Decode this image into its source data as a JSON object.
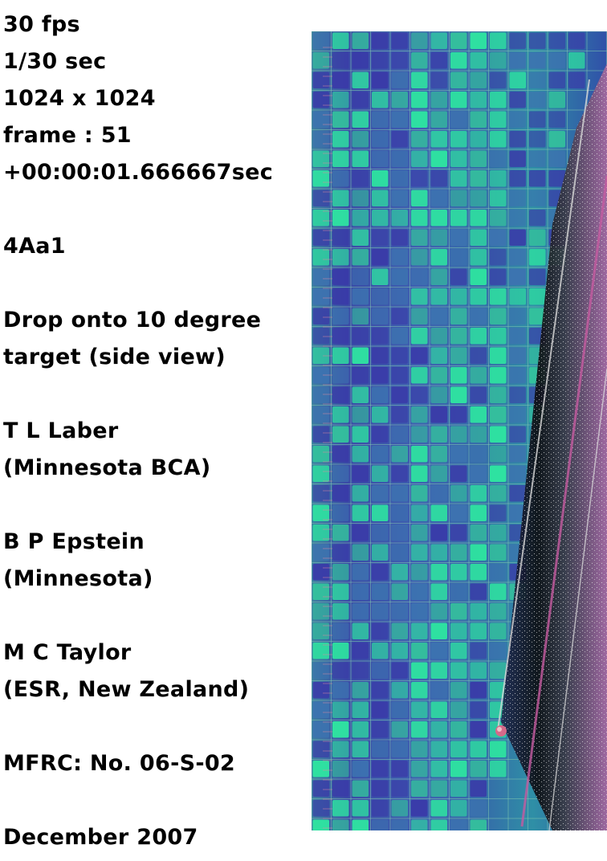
{
  "caption": {
    "fps": "30 fps",
    "shutter": "1/30 sec",
    "resolution": "1024 x 1024",
    "frame": "frame : 51",
    "timestamp": "+00:00:01.666667sec",
    "specimen": "4Aa1",
    "description_line1": "Drop onto 10 degree",
    "description_line2": "target (side view)",
    "author1_name": "T L Laber",
    "author1_affiliation": "(Minnesota BCA)",
    "author2_name": "B P Epstein",
    "author2_affiliation": "(Minnesota)",
    "author3_name": "M C Taylor",
    "author3_affiliation": "(ESR, New Zealand)",
    "project": "MFRC:  No. 06-S-02",
    "date": "December 2007"
  },
  "photo": {
    "subject": "high-speed video frame, false-colour, side view of drop onto inclined target",
    "palette": {
      "background_blue": "#3a3aa0",
      "grid_line": "#6fb7a8",
      "cell_green": "#2ee8a0",
      "cell_teal": "#3aa69a",
      "surface_dark": "#141414",
      "edge_magenta": "#c04a9a"
    }
  }
}
